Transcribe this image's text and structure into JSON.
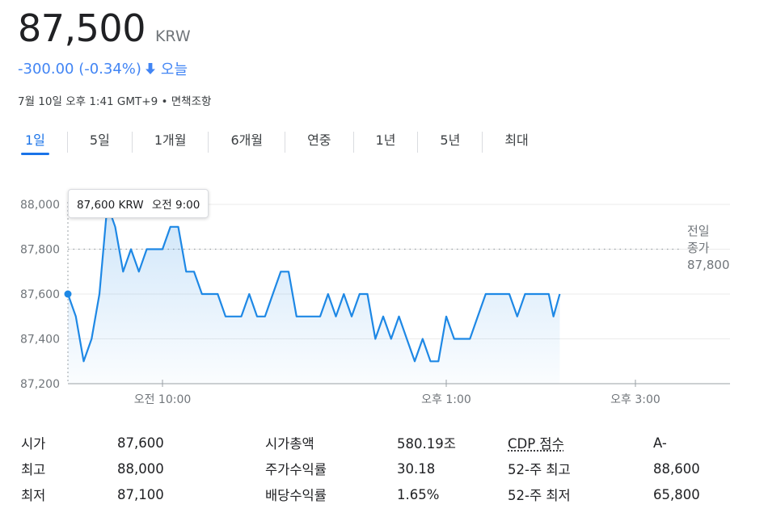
{
  "header": {
    "price": "87,500",
    "currency": "KRW",
    "change": "-300.00 (-0.34%)",
    "change_period": "오늘",
    "timestamp": "7월 10일 오후 1:41 GMT+9",
    "separator": "•",
    "disclaimer": "면책조항",
    "accent_color": "#4285f4"
  },
  "tabs": [
    {
      "label": "1일",
      "active": true
    },
    {
      "label": "5일"
    },
    {
      "label": "1개월"
    },
    {
      "label": "6개월"
    },
    {
      "label": "연중"
    },
    {
      "label": "1년"
    },
    {
      "label": "5년"
    },
    {
      "label": "최대"
    }
  ],
  "tooltip": {
    "value": "87,600 KRW",
    "time": "오전 9:00"
  },
  "prev_close": {
    "label_line1": "전일",
    "label_line2": "종가",
    "value": "87,800"
  },
  "chart_data": {
    "type": "line",
    "x_unit": "minutes since market open (09:00)",
    "xlim": [
      0,
      420
    ],
    "ylim": [
      87200,
      88000
    ],
    "yticks": [
      88000,
      87800,
      87600,
      87400,
      87200
    ],
    "ytick_labels": [
      "88,000",
      "87,800",
      "87,600",
      "87,400",
      "87,200"
    ],
    "xticks": [
      60,
      240,
      360
    ],
    "xtick_labels": [
      "오전 10:00",
      "오후 1:00",
      "오후 3:00"
    ],
    "reference_line": 87800,
    "line_color": "#1e88e5",
    "series": [
      {
        "x": [
          0,
          5,
          10,
          15,
          20,
          25,
          30,
          35,
          40,
          45,
          50,
          55,
          60,
          65,
          70,
          75,
          80,
          85,
          90,
          95,
          100,
          105,
          110,
          115,
          120,
          125,
          130,
          135,
          140,
          145,
          150,
          155,
          160,
          165,
          170,
          175,
          180,
          185,
          190,
          195,
          200,
          205,
          210,
          215,
          220,
          225,
          230,
          235,
          240,
          245,
          250,
          255,
          260,
          265,
          270,
          275,
          280,
          285,
          290,
          295,
          300,
          305,
          308,
          312
        ],
        "y": [
          87600,
          87500,
          87300,
          87400,
          87600,
          88000,
          87900,
          87700,
          87800,
          87700,
          87800,
          87800,
          87800,
          87900,
          87900,
          87700,
          87700,
          87600,
          87600,
          87600,
          87500,
          87500,
          87500,
          87600,
          87500,
          87500,
          87600,
          87700,
          87700,
          87500,
          87500,
          87500,
          87500,
          87600,
          87500,
          87600,
          87500,
          87600,
          87600,
          87400,
          87500,
          87400,
          87500,
          87400,
          87300,
          87400,
          87300,
          87300,
          87500,
          87400,
          87400,
          87400,
          87500,
          87600,
          87600,
          87600,
          87600,
          87500,
          87600,
          87600,
          87600,
          87600,
          87500,
          87600
        ]
      }
    ]
  },
  "stats": [
    {
      "l1": "시가",
      "v1": "87,600",
      "l2": "시가총액",
      "v2": "580.19조",
      "l3": "CDP 점수",
      "v3": "A-"
    },
    {
      "l1": "최고",
      "v1": "88,000",
      "l2": "주가수익률",
      "v2": "30.18",
      "l3": "52-주 최고",
      "v3": "88,600"
    },
    {
      "l1": "최저",
      "v1": "87,100",
      "l2": "배당수익률",
      "v2": "1.65%",
      "l3": "52-주 최저",
      "v3": "65,800"
    }
  ]
}
